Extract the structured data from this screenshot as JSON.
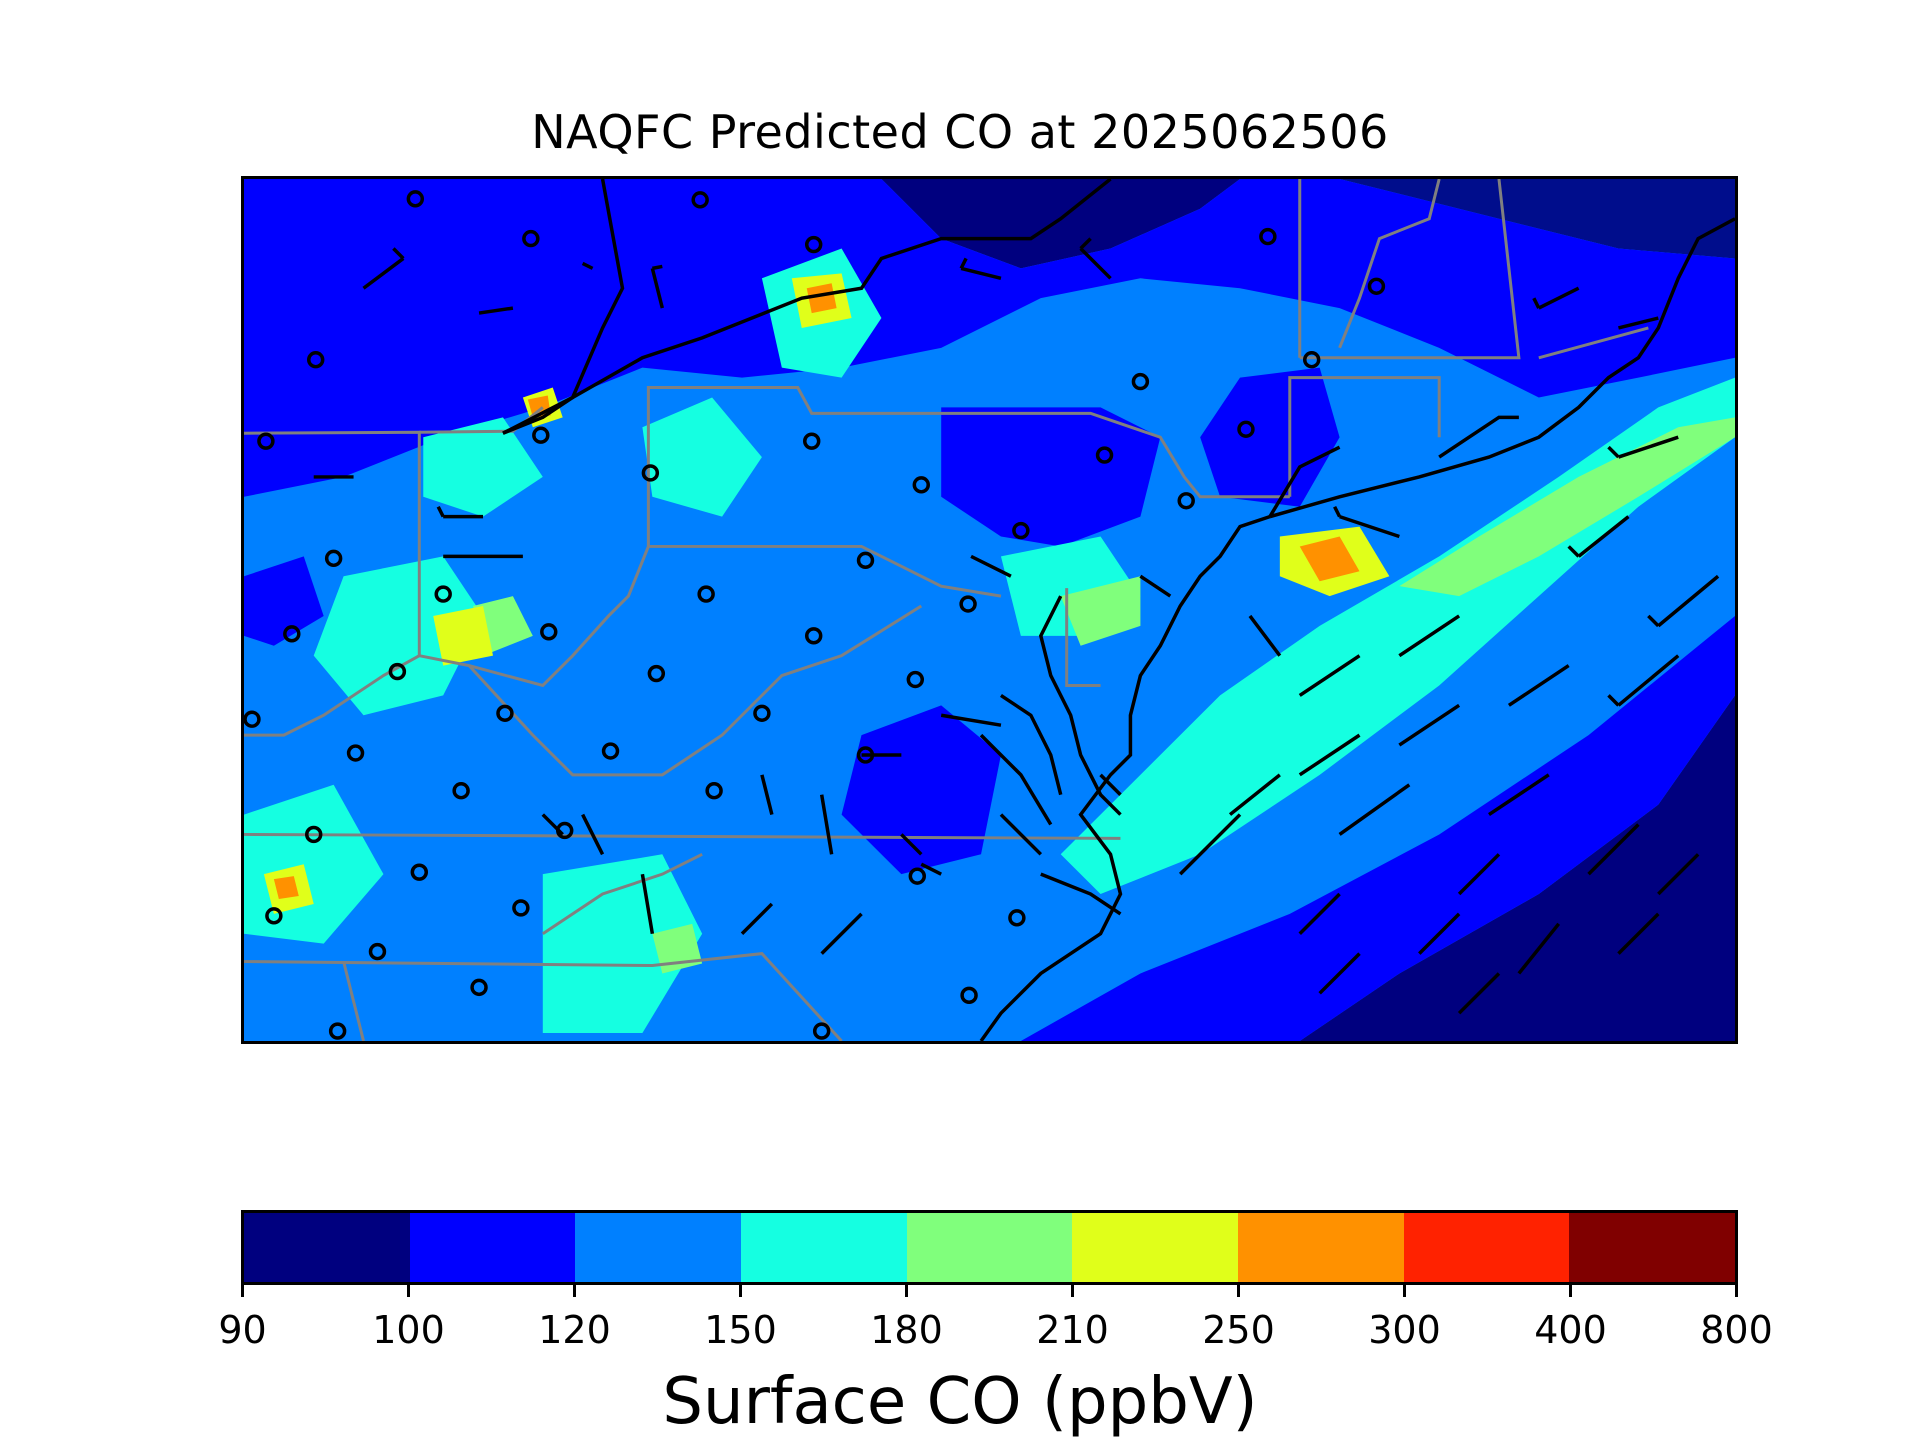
{
  "title": "NAQFC Predicted CO at 2025062506",
  "colorbar": {
    "label": "Surface CO (ppbV)",
    "ticks": [
      "90",
      "100",
      "120",
      "150",
      "180",
      "210",
      "250",
      "300",
      "400",
      "800"
    ],
    "colors": [
      "#00007f",
      "#0000ff",
      "#0080ff",
      "#15ffe1",
      "#80ff7c",
      "#e0ff1a",
      "#ff9100",
      "#ff2200",
      "#800000"
    ]
  },
  "map": {
    "variable": "Surface CO",
    "units": "ppbV",
    "overlays": [
      "state-borders",
      "coastlines",
      "wind-barbs",
      "calm-wind-circles"
    ]
  }
}
